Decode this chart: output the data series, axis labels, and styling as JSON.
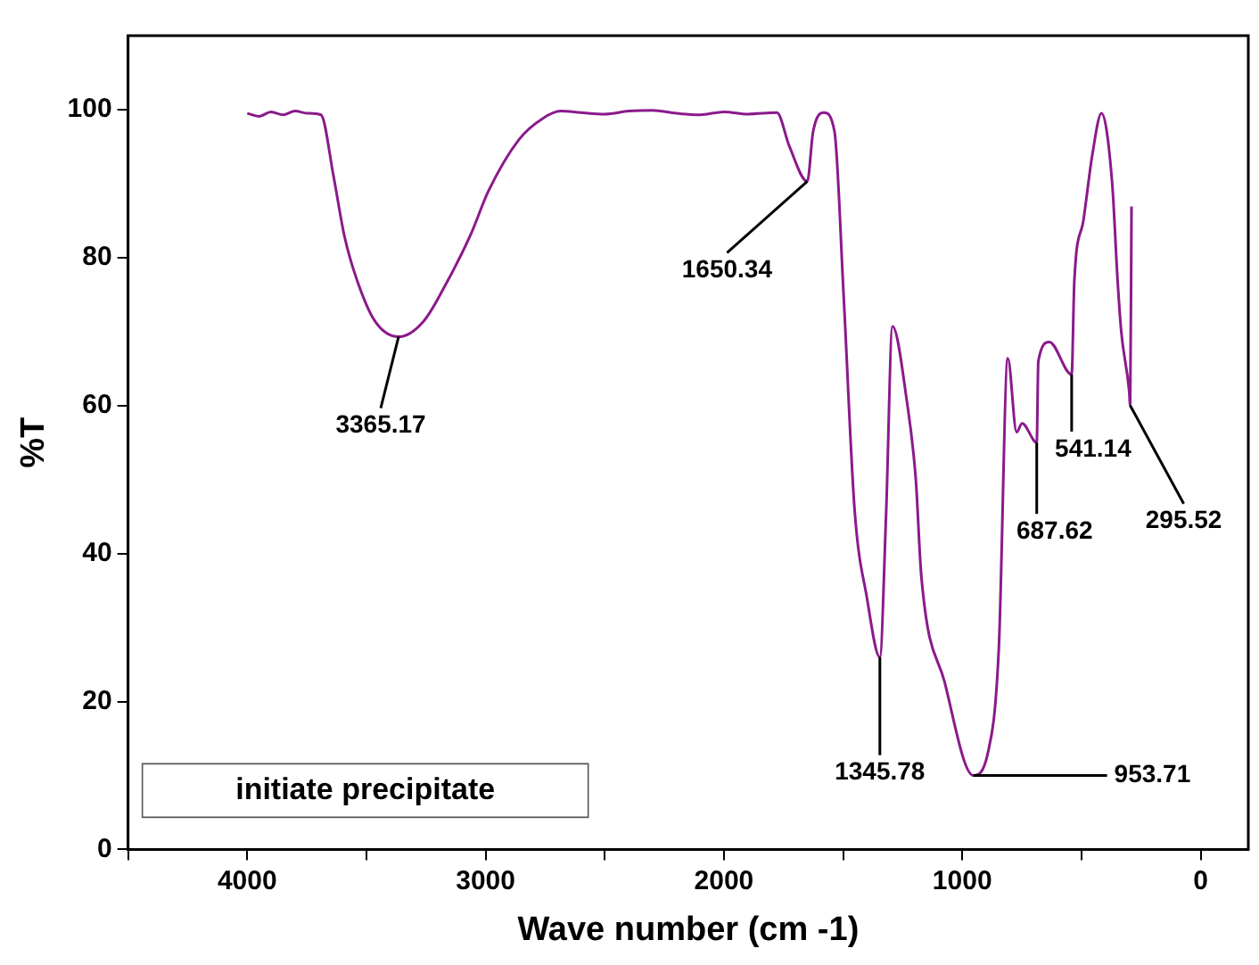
{
  "chart_data": {
    "type": "line",
    "xlabel": "Wave number (cm -1)",
    "ylabel": "%T",
    "xlim": [
      4500,
      -200
    ],
    "ylim": [
      0,
      110
    ],
    "xticks": [
      {
        "value": 4500,
        "label": null
      },
      4000,
      {
        "value": 3500,
        "label": null
      },
      3000,
      {
        "value": 2500,
        "label": null
      },
      2000,
      {
        "value": 1500,
        "label": null
      },
      1000,
      {
        "value": 500,
        "label": null
      },
      0
    ],
    "yticks": [
      0,
      20,
      40,
      60,
      80,
      100
    ],
    "grid": false,
    "legend": false,
    "marker": "none",
    "line_style": "solid",
    "series": [
      {
        "color": "#8b1a8b",
        "x": [
          4000,
          3950,
          3900,
          3850,
          3800,
          3744,
          3691,
          3638,
          3593,
          3540,
          3464,
          3365.17,
          3260,
          3162,
          3064,
          2988,
          2859,
          2761,
          2685,
          2600,
          2500,
          2400,
          2300,
          2200,
          2100,
          2000,
          1900,
          1778,
          1725,
          1650.34,
          1626,
          1581,
          1536,
          1498,
          1452,
          1400,
          1345.78,
          1320,
          1293,
          1233,
          1195,
          1172,
          1074,
          953.71,
          893,
          847,
          809,
          772,
          749,
          687.62,
          681,
          635,
          541.14,
          530,
          492,
          454,
          416,
          371,
          348,
          333,
          300,
          295.52,
          290
        ],
        "values": [
          99.5,
          99.1,
          99.7,
          99.3,
          99.8,
          99.5,
          99.3,
          91,
          83,
          77,
          71.4,
          69.3,
          71.4,
          76.7,
          83,
          89,
          96,
          98.8,
          99.8,
          99.6,
          99.4,
          99.8,
          99.9,
          99.5,
          99.3,
          99.7,
          99.4,
          99.6,
          95,
          90.3,
          97,
          99.6,
          97,
          75,
          46,
          34,
          26,
          45,
          70.7,
          60.7,
          50,
          37,
          22.6,
          10,
          13,
          27,
          66.4,
          56.4,
          57.6,
          55,
          66,
          68.6,
          64.2,
          76.7,
          85,
          94,
          99.5,
          90,
          76.7,
          70,
          62,
          60,
          86.9
        ]
      }
    ],
    "annotations": [
      {
        "text": "3365.17",
        "x": 3365.17,
        "y": 69.3
      },
      {
        "text": "1650.34",
        "x": 1650.34,
        "y": 90.3
      },
      {
        "text": "1345.78",
        "x": 1345.78,
        "y": 26
      },
      {
        "text": "953.71",
        "x": 953.71,
        "y": 10
      },
      {
        "text": "687.62",
        "x": 687.62,
        "y": 55
      },
      {
        "text": "541.14",
        "x": 541.14,
        "y": 64.2
      },
      {
        "text": "295.52",
        "x": 295.52,
        "y": 60
      },
      "initiate precipitate"
    ]
  }
}
